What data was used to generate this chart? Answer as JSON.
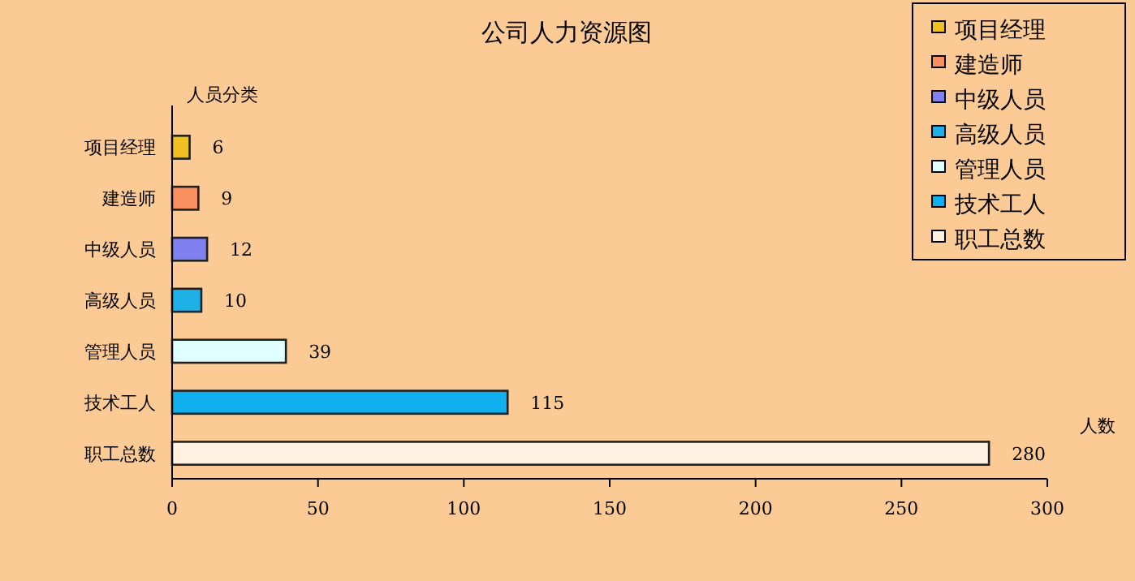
{
  "chart_data": {
    "type": "bar",
    "orientation": "horizontal",
    "title": "公司人力资源图",
    "ylabel": "人员分类",
    "xlabel": "人数",
    "categories": [
      "项目经理",
      "建造师",
      "中级人员",
      "高级人员",
      "管理人员",
      "技术工人",
      "职工总数"
    ],
    "series": [
      {
        "name": "项目经理",
        "color": "#f0c020",
        "values": [
          6,
          null,
          null,
          null,
          null,
          null,
          null
        ]
      },
      {
        "name": "建造师",
        "color": "#f89060",
        "values": [
          null,
          9,
          null,
          null,
          null,
          null,
          null
        ]
      },
      {
        "name": "中级人员",
        "color": "#8080f0",
        "values": [
          null,
          null,
          12,
          null,
          null,
          null,
          null
        ]
      },
      {
        "name": "高级人员",
        "color": "#20b0e8",
        "values": [
          null,
          null,
          null,
          10,
          null,
          null,
          null
        ]
      },
      {
        "name": "管理人员",
        "color": "#e0ffff",
        "values": [
          null,
          null,
          null,
          null,
          39,
          null,
          null
        ]
      },
      {
        "name": "技术工人",
        "color": "#10b0f0",
        "values": [
          null,
          null,
          null,
          null,
          null,
          115,
          null
        ]
      },
      {
        "name": "职工总数",
        "color": "#fff0e0",
        "values": [
          null,
          null,
          null,
          null,
          null,
          null,
          280
        ]
      }
    ],
    "xlim": [
      0,
      300
    ],
    "xticks": [
      0,
      50,
      100,
      150,
      200,
      250,
      300
    ],
    "data_labels": true,
    "legend": "top right"
  }
}
